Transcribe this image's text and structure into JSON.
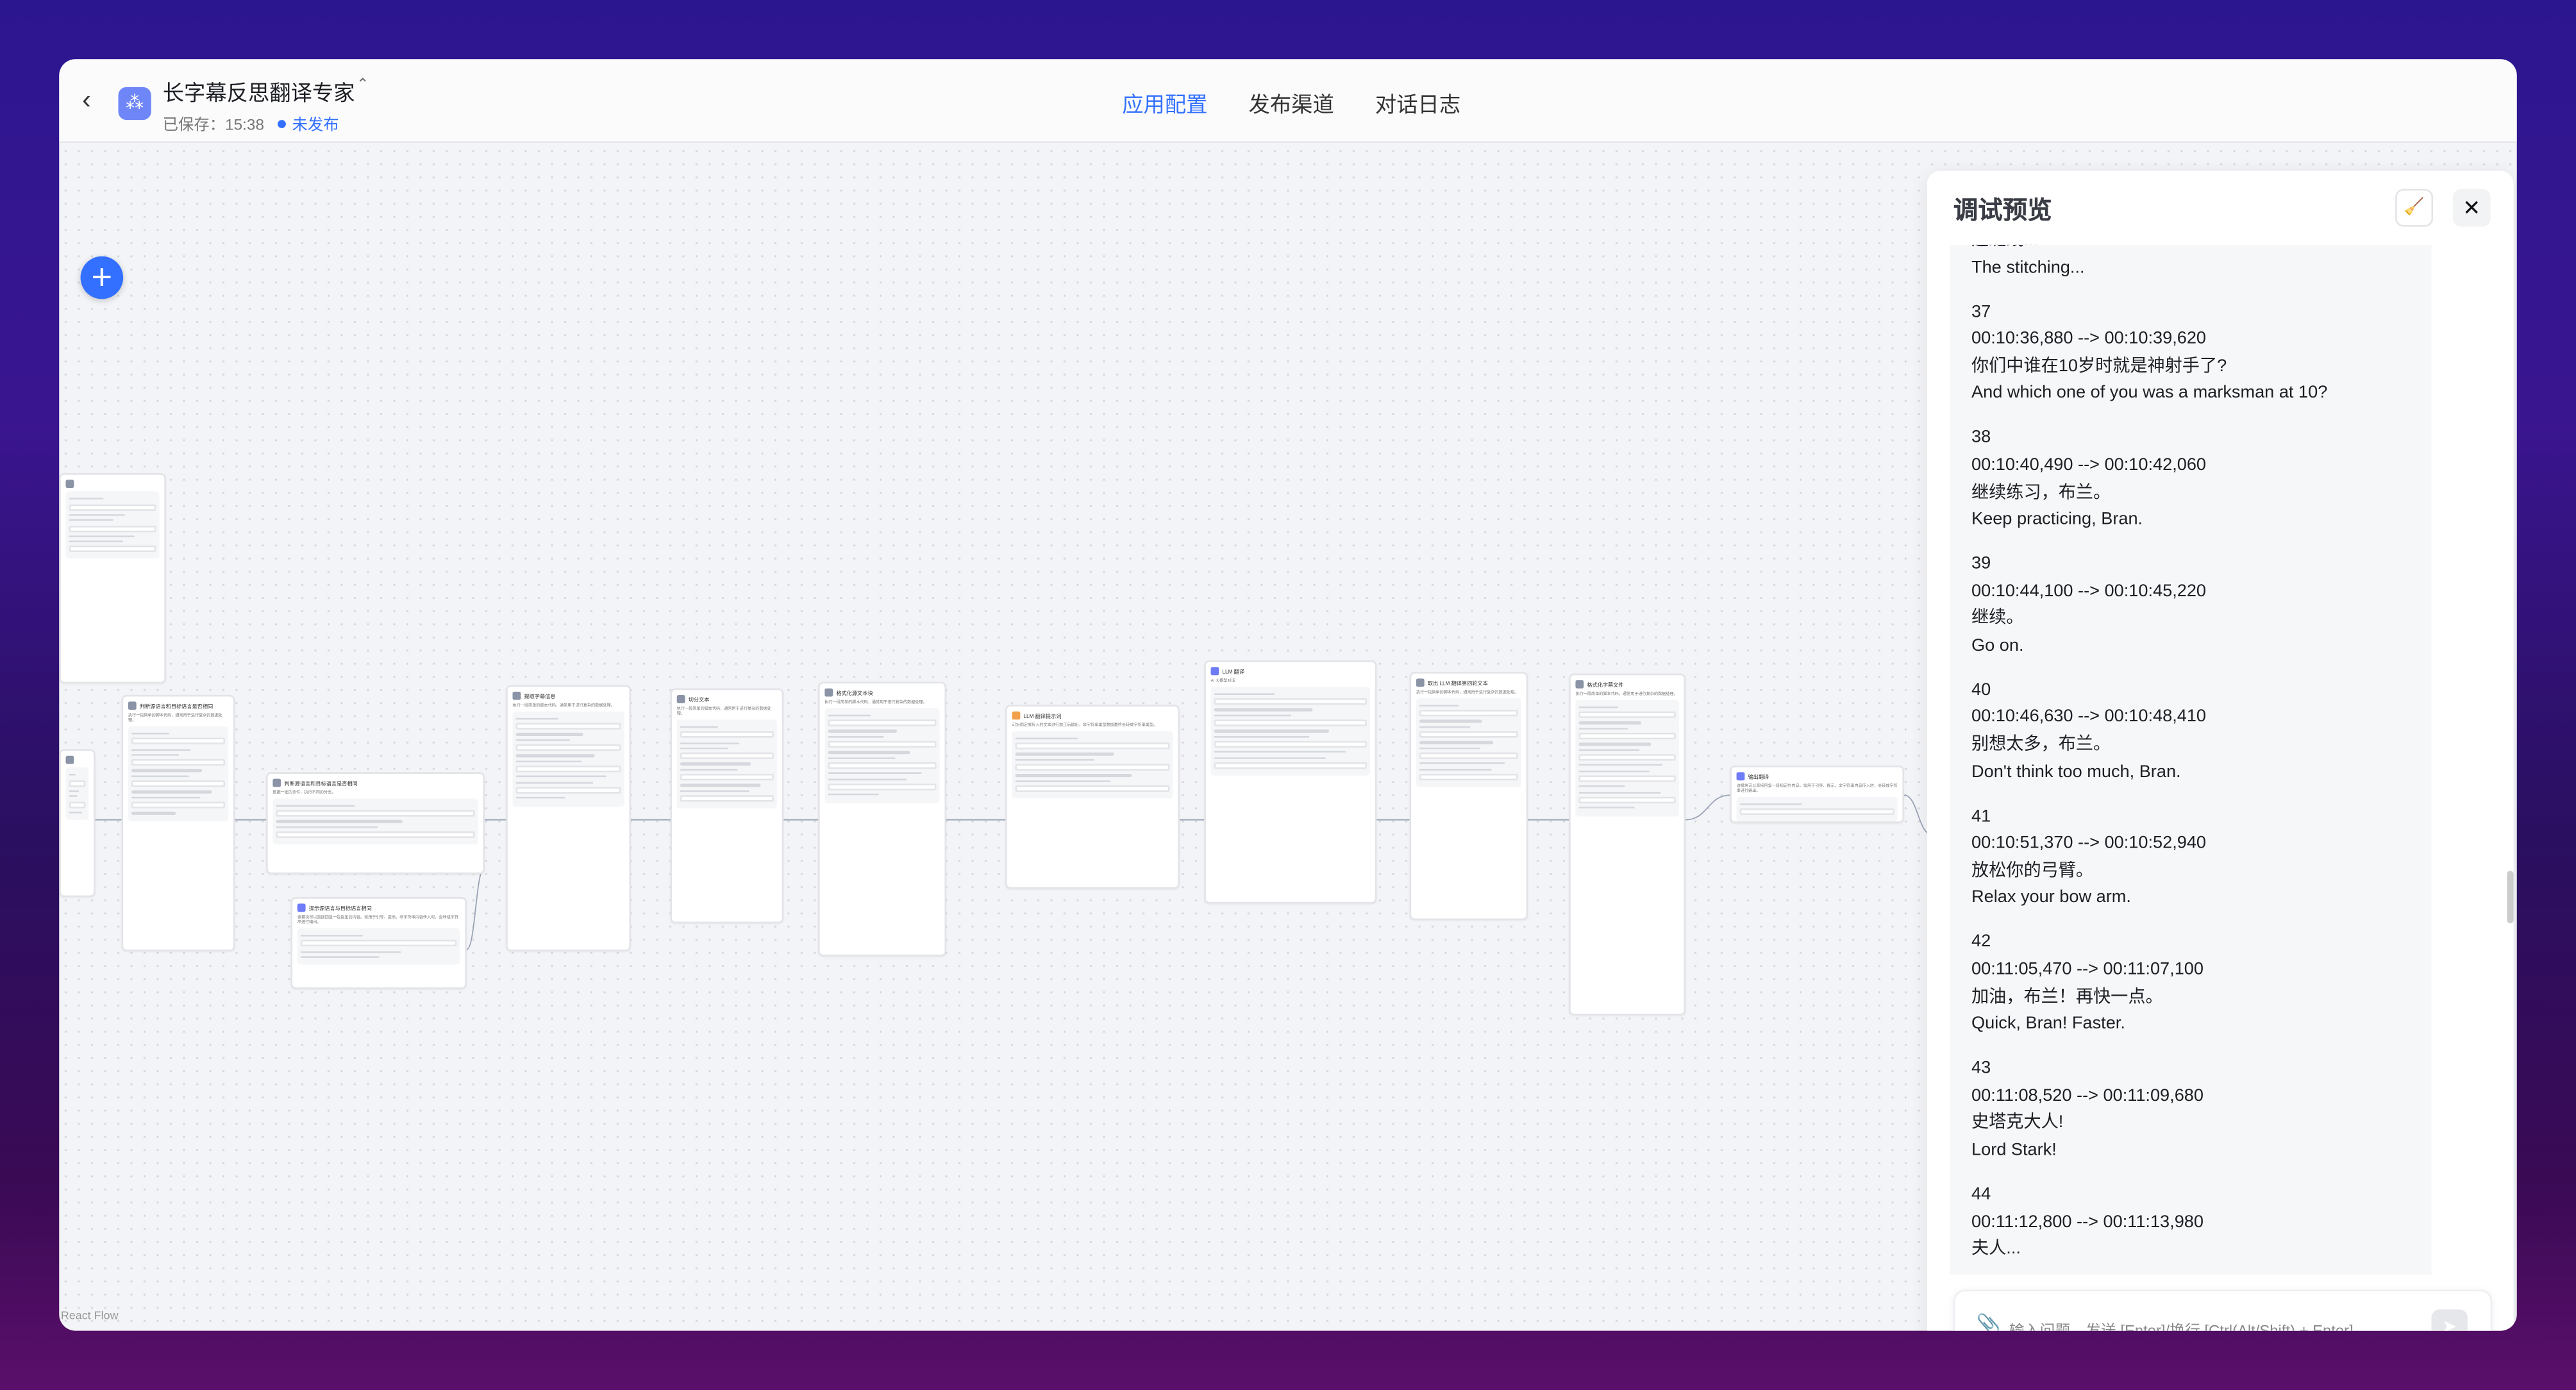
{
  "header": {
    "app_title": "长字幕反思翻译专家",
    "saved_text": "已保存：15:38",
    "publish_status": "未发布",
    "tabs": [
      {
        "label": "应用配置",
        "active": true
      },
      {
        "label": "发布渠道",
        "active": false
      },
      {
        "label": "对话日志",
        "active": false
      }
    ]
  },
  "colors": {
    "accent": "#3370ff",
    "code_node": "#8a94a6",
    "llm_node": "#6e7cf7",
    "prompt_node": "#f2a04a"
  },
  "canvas": {
    "react_flow_label": "React Flow",
    "nodes": [
      {
        "title": "",
        "desc": "",
        "icon_color": "#8a94a6"
      },
      {
        "title": "",
        "desc": "",
        "icon_color": "#8a94a6"
      },
      {
        "title": "判断源语言和目标语言是否相同",
        "desc": "执行一段简单的脚本代码，通常用于进行复杂的数据处理。",
        "icon_color": "#8a94a6"
      },
      {
        "title": "判断源语言和目标语言是否相同",
        "desc": "根据一定的条件，执行不同的分支。",
        "icon_color": "#8a94a6"
      },
      {
        "title": "提示源语言与目标语言相同",
        "desc": "该模块可以直接回复一段指定的内容。常用于引导、提示。非字符串内容传入时，会转成字符串进行输出。",
        "icon_color": "#6e7cf7"
      },
      {
        "title": "提取字幕信息",
        "desc": "执行一段简单的脚本代码，通常用于进行复杂的数据处理。",
        "icon_color": "#8a94a6"
      },
      {
        "title": "切分文本",
        "desc": "执行一段简单的脚本代码，通常用于进行复杂的数据处理。",
        "icon_color": "#8a94a6"
      },
      {
        "title": "格式化源文本块",
        "desc": "执行一段简单的脚本代码，通常用于进行复杂的数据处理。",
        "icon_color": "#8a94a6"
      },
      {
        "title": "LLM 翻译提示词",
        "desc": "可对固定或传入的文本进行加工后输出，非字符串类型数据最终会转成字符串类型。",
        "icon_color": "#f2a04a"
      },
      {
        "title": "LLM 翻译",
        "desc": "AI 大模型对话",
        "icon_color": "#6e7cf7"
      },
      {
        "title": "取出 LLM 翻译第四轮文本",
        "desc": "执行一段简单的脚本代码，通常用于进行复杂的数据处理。",
        "icon_color": "#8a94a6"
      },
      {
        "title": "格式化字幕文件",
        "desc": "执行一段简单的脚本代码，通常用于进行复杂的数据处理。",
        "icon_color": "#8a94a6"
      },
      {
        "title": "输出翻译",
        "desc": "该模块可以直接回复一段指定的内容。常用于引导、提示。非字符串内容传入时，会转成字符串进行输出。",
        "icon_color": "#6e7cf7"
      }
    ],
    "add_node_icon": "plus-icon",
    "zoom_controls": {
      "zoom_in": "+",
      "zoom_out": "−",
      "fit": "⛶"
    }
  },
  "debug_panel": {
    "title": "调试预览",
    "clear_icon": "broom-icon",
    "close_icon": "close-icon",
    "messages": [
      {
        "lines": [
          "这缝线...",
          "The stitching..."
        ]
      },
      {
        "lines": [
          "37",
          "00:10:36,880 --> 00:10:39,620",
          "你们中谁在10岁时就是神射手了?",
          "And which one of you was a marksman at 10?"
        ]
      },
      {
        "lines": [
          "38",
          "00:10:40,490 --> 00:10:42,060",
          "继续练习，布兰。",
          "Keep practicing, Bran."
        ]
      },
      {
        "lines": [
          "39",
          "00:10:44,100 --> 00:10:45,220",
          "继续。",
          "Go on."
        ]
      },
      {
        "lines": [
          "40",
          "00:10:46,630 --> 00:10:48,410",
          "别想太多，布兰。",
          "Don't think too much, Bran."
        ]
      },
      {
        "lines": [
          "41",
          "00:10:51,370 --> 00:10:52,940",
          "放松你的弓臂。",
          "Relax your bow arm."
        ]
      },
      {
        "lines": [
          "42",
          "00:11:05,470 --> 00:11:07,100",
          "加油，布兰！再快一点。",
          "Quick, Bran! Faster."
        ]
      },
      {
        "lines": [
          "43",
          "00:11:08,520 --> 00:11:09,680",
          "史塔克大人!",
          "Lord Stark!"
        ]
      },
      {
        "lines": [
          "44",
          "00:11:12,800 --> 00:11:13,980",
          "夫人..."
        ]
      }
    ],
    "input_placeholder": "输入问题，发送 [Enter]/换行 [Ctrl(Alt/Shift) + Enter]"
  }
}
